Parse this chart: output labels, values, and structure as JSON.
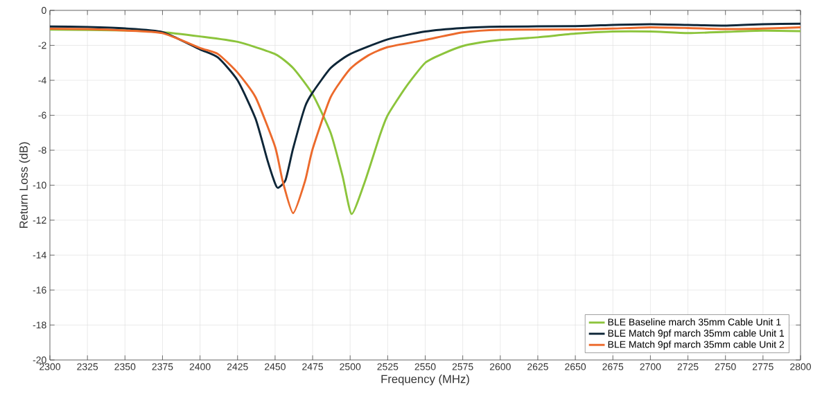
{
  "chart_data": {
    "type": "line",
    "xlabel": "Frequency (MHz)",
    "ylabel": "Return Loss (dB)",
    "xlim": [
      2300,
      2800
    ],
    "ylim": [
      -20,
      0
    ],
    "xticks": [
      2300,
      2325,
      2350,
      2375,
      2400,
      2425,
      2450,
      2475,
      2500,
      2525,
      2550,
      2575,
      2600,
      2625,
      2650,
      2675,
      2700,
      2725,
      2750,
      2775,
      2800
    ],
    "yticks": [
      -20,
      -18,
      -16,
      -14,
      -12,
      -10,
      -8,
      -6,
      -4,
      -2,
      0
    ],
    "grid": true,
    "legend": "bottom right",
    "line_style": "solid",
    "series": [
      {
        "name": "BLE Baseline march 35mm Cable Unit 1",
        "color": "#8cc43c",
        "x": [
          2300,
          2350,
          2375,
          2400,
          2425,
          2450,
          2462,
          2475,
          2487,
          2495,
          2501,
          2510,
          2520,
          2525,
          2537,
          2550,
          2562,
          2575,
          2587,
          2600,
          2625,
          2650,
          2675,
          2700,
          2725,
          2750,
          2775,
          2800
        ],
        "values": [
          -1.1,
          -1.15,
          -1.25,
          -1.49,
          -1.8,
          -2.5,
          -3.3,
          -4.8,
          -7.0,
          -9.5,
          -11.65,
          -9.75,
          -7.1,
          -6.0,
          -4.4,
          -3.0,
          -2.47,
          -2.04,
          -1.83,
          -1.69,
          -1.54,
          -1.33,
          -1.21,
          -1.21,
          -1.3,
          -1.23,
          -1.16,
          -1.19
        ]
      },
      {
        "name": "BLE Match 9pf march 35mm cable Unit 1",
        "color": "#0e2638",
        "x": [
          2300,
          2325,
          2350,
          2375,
          2400,
          2412,
          2425,
          2437,
          2445,
          2450,
          2452,
          2457,
          2462,
          2470,
          2475,
          2487,
          2500,
          2525,
          2550,
          2575,
          2600,
          2650,
          2675,
          2700,
          2725,
          2750,
          2775,
          2800
        ],
        "values": [
          -0.92,
          -0.95,
          -1.03,
          -1.24,
          -2.23,
          -2.7,
          -4.0,
          -6.2,
          -8.6,
          -9.9,
          -10.15,
          -9.7,
          -7.9,
          -5.5,
          -4.7,
          -3.3,
          -2.5,
          -1.66,
          -1.21,
          -1.01,
          -0.93,
          -0.9,
          -0.83,
          -0.79,
          -0.83,
          -0.87,
          -0.79,
          -0.76
        ]
      },
      {
        "name": "BLE Match 9pf march 35mm cable Unit 2",
        "color": "#ec6a2c",
        "x": [
          2300,
          2325,
          2350,
          2375,
          2400,
          2412,
          2425,
          2437,
          2450,
          2455,
          2462,
          2470,
          2475,
          2487,
          2500,
          2512,
          2525,
          2550,
          2575,
          2600,
          2650,
          2675,
          2700,
          2725,
          2750,
          2775,
          2800
        ],
        "values": [
          -1.05,
          -1.07,
          -1.15,
          -1.3,
          -2.15,
          -2.5,
          -3.56,
          -4.97,
          -7.8,
          -9.75,
          -11.6,
          -9.75,
          -7.93,
          -4.97,
          -3.35,
          -2.58,
          -2.1,
          -1.69,
          -1.26,
          -1.11,
          -1.09,
          -1.04,
          -0.97,
          -1.01,
          -1.07,
          -1.04,
          -0.97
        ]
      }
    ]
  }
}
